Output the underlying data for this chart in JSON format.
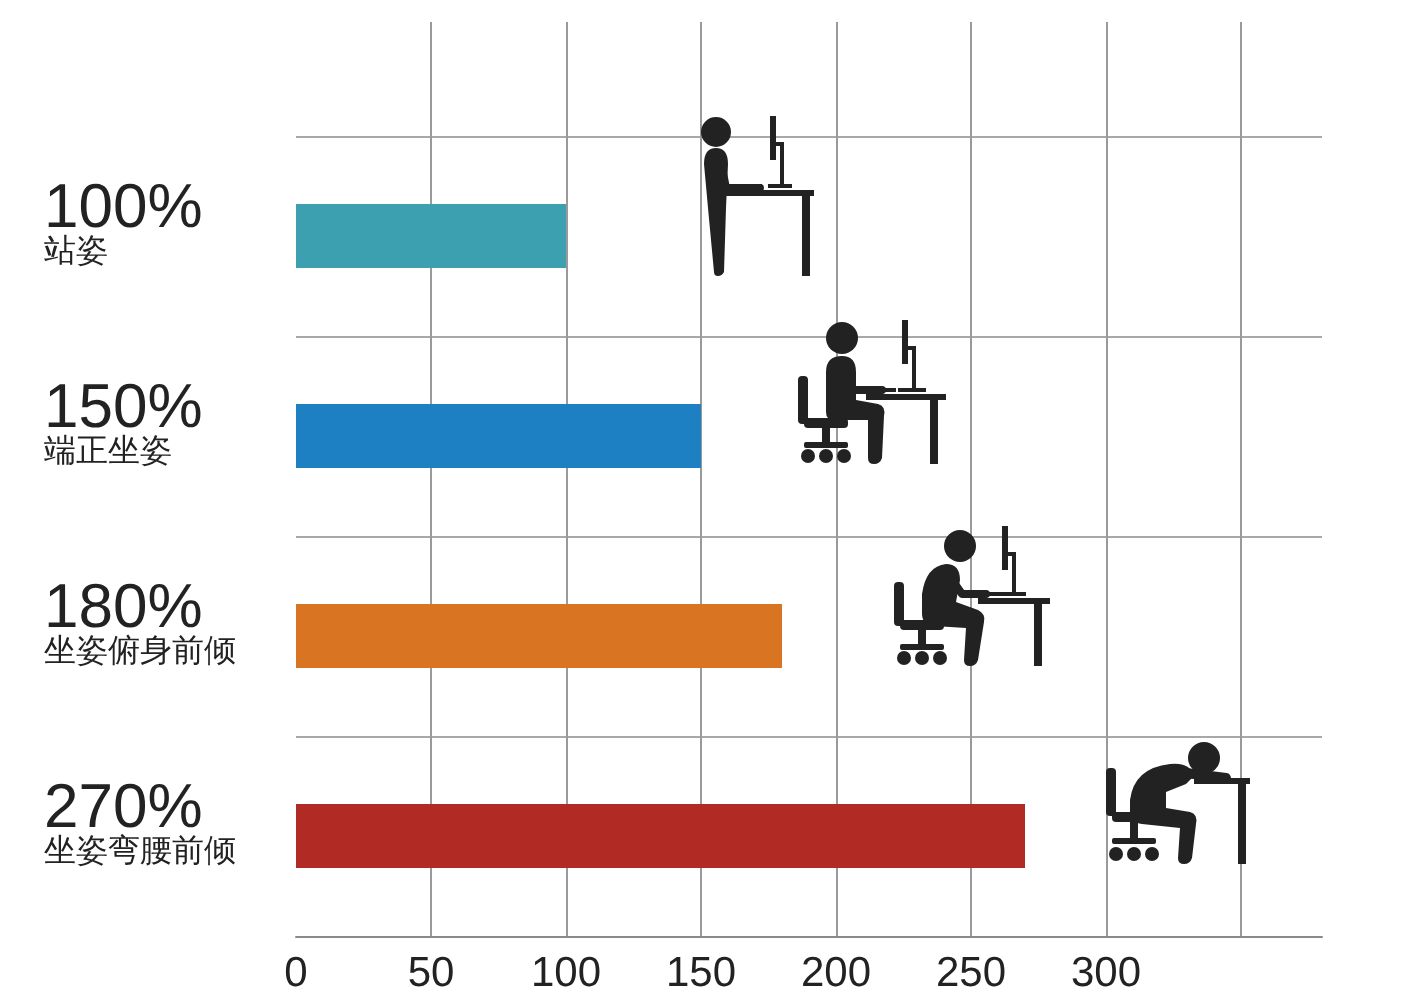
{
  "chart_data": {
    "type": "bar",
    "orientation": "horizontal",
    "categories": [
      "站姿",
      "端正坐姿",
      "坐姿俯身前倾",
      "坐姿弯腰前倾"
    ],
    "values": [
      100,
      150,
      180,
      270
    ],
    "colors": [
      "#3ca0b0",
      "#1c80c2",
      "#d97422",
      "#b12a24"
    ],
    "value_labels": [
      "100%",
      "150%",
      "180%",
      "270%"
    ],
    "xlim": [
      0,
      380
    ],
    "xticks": [
      0,
      50,
      100,
      150,
      200,
      250,
      300,
      {
        "value": 350,
        "label": null
      }
    ],
    "grid": true
  }
}
